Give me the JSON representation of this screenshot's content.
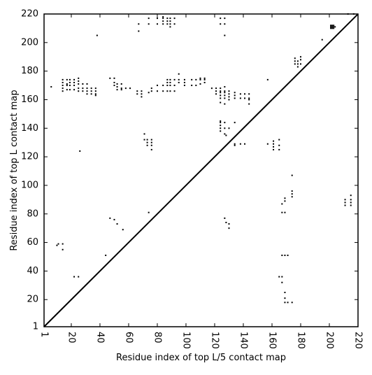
{
  "chart_data": {
    "type": "scatter",
    "title": "",
    "xlabel": "Residue index of top L/5 contact map",
    "ylabel": "Residue index of top L contact map",
    "xlim": [
      1,
      220
    ],
    "ylim": [
      1,
      220
    ],
    "xticks": [
      1,
      20,
      40,
      60,
      80,
      100,
      120,
      140,
      160,
      180,
      200,
      220
    ],
    "yticks": [
      1,
      20,
      40,
      60,
      80,
      100,
      120,
      140,
      160,
      180,
      200,
      220
    ],
    "grid": false,
    "diagonal_line": {
      "from": [
        1,
        1
      ],
      "to": [
        220,
        220
      ]
    },
    "marker_color": "#000000",
    "points": [
      [
        6,
        169
      ],
      [
        10,
        58
      ],
      [
        11,
        59
      ],
      [
        14,
        55
      ],
      [
        14,
        59
      ],
      [
        14,
        166
      ],
      [
        14,
        168
      ],
      [
        14,
        170
      ],
      [
        14,
        172
      ],
      [
        14,
        174
      ],
      [
        17,
        167
      ],
      [
        17,
        170
      ],
      [
        17,
        171
      ],
      [
        17,
        174
      ],
      [
        19,
        167
      ],
      [
        19,
        170
      ],
      [
        19,
        172
      ],
      [
        19,
        174
      ],
      [
        22,
        167
      ],
      [
        22,
        170
      ],
      [
        22,
        172
      ],
      [
        22,
        174
      ],
      [
        25,
        166
      ],
      [
        25,
        168
      ],
      [
        25,
        171
      ],
      [
        25,
        173
      ],
      [
        25,
        175
      ],
      [
        28,
        166
      ],
      [
        28,
        168
      ],
      [
        28,
        171
      ],
      [
        31,
        164
      ],
      [
        31,
        166
      ],
      [
        31,
        168
      ],
      [
        31,
        171
      ],
      [
        34,
        164
      ],
      [
        34,
        166
      ],
      [
        34,
        168
      ],
      [
        37,
        163
      ],
      [
        37,
        164
      ],
      [
        37,
        166
      ],
      [
        37,
        168
      ],
      [
        22,
        36
      ],
      [
        25,
        36
      ],
      [
        26,
        124
      ],
      [
        38,
        205
      ],
      [
        44,
        51
      ],
      [
        47,
        77
      ],
      [
        50,
        76
      ],
      [
        52,
        73
      ],
      [
        56,
        69
      ],
      [
        47,
        175
      ],
      [
        50,
        170
      ],
      [
        50,
        172
      ],
      [
        50,
        175
      ],
      [
        52,
        167
      ],
      [
        52,
        169
      ],
      [
        52,
        171
      ],
      [
        55,
        167
      ],
      [
        55,
        168
      ],
      [
        55,
        171
      ],
      [
        58,
        168
      ],
      [
        61,
        168
      ],
      [
        66,
        164
      ],
      [
        66,
        166
      ],
      [
        67,
        208
      ],
      [
        67,
        213
      ],
      [
        69,
        162
      ],
      [
        69,
        164
      ],
      [
        69,
        166
      ],
      [
        71,
        136
      ],
      [
        71,
        132
      ],
      [
        73,
        128
      ],
      [
        73,
        130
      ],
      [
        73,
        132
      ],
      [
        74,
        81
      ],
      [
        74,
        165
      ],
      [
        74,
        213
      ],
      [
        74,
        217
      ],
      [
        76,
        125
      ],
      [
        76,
        128
      ],
      [
        76,
        130
      ],
      [
        76,
        132
      ],
      [
        76,
        166
      ],
      [
        76,
        168
      ],
      [
        80,
        166
      ],
      [
        80,
        170
      ],
      [
        80,
        213
      ],
      [
        80,
        217
      ],
      [
        84,
        166
      ],
      [
        84,
        170
      ],
      [
        84,
        213
      ],
      [
        84,
        215
      ],
      [
        84,
        217
      ],
      [
        84,
        218
      ],
      [
        87,
        166
      ],
      [
        87,
        170
      ],
      [
        87,
        172
      ],
      [
        87,
        174
      ],
      [
        87,
        213
      ],
      [
        87,
        215
      ],
      [
        87,
        217
      ],
      [
        89,
        166
      ],
      [
        89,
        170
      ],
      [
        89,
        172
      ],
      [
        89,
        174
      ],
      [
        89,
        211
      ],
      [
        89,
        213
      ],
      [
        89,
        215
      ],
      [
        89,
        217
      ],
      [
        92,
        166
      ],
      [
        92,
        170
      ],
      [
        92,
        174
      ],
      [
        92,
        213
      ],
      [
        92,
        217
      ],
      [
        95,
        172
      ],
      [
        95,
        174
      ],
      [
        95,
        178
      ],
      [
        99,
        170
      ],
      [
        99,
        172
      ],
      [
        99,
        174
      ],
      [
        104,
        170
      ],
      [
        104,
        174
      ],
      [
        107,
        170
      ],
      [
        107,
        174
      ],
      [
        110,
        171
      ],
      [
        110,
        174
      ],
      [
        110,
        175
      ],
      [
        113,
        172
      ],
      [
        113,
        174
      ],
      [
        113,
        175
      ],
      [
        118,
        168
      ],
      [
        121,
        164
      ],
      [
        121,
        166
      ],
      [
        121,
        168
      ],
      [
        124,
        138
      ],
      [
        124,
        140
      ],
      [
        124,
        142
      ],
      [
        124,
        144
      ],
      [
        124,
        145
      ],
      [
        124,
        158
      ],
      [
        124,
        161
      ],
      [
        124,
        163
      ],
      [
        124,
        165
      ],
      [
        124,
        166
      ],
      [
        124,
        168
      ],
      [
        124,
        213
      ],
      [
        124,
        217
      ],
      [
        127,
        77
      ],
      [
        127,
        136
      ],
      [
        127,
        140
      ],
      [
        127,
        144
      ],
      [
        127,
        157
      ],
      [
        127,
        161
      ],
      [
        127,
        163
      ],
      [
        127,
        165
      ],
      [
        127,
        166
      ],
      [
        127,
        169
      ],
      [
        127,
        205
      ],
      [
        127,
        213
      ],
      [
        127,
        217
      ],
      [
        128,
        74
      ],
      [
        128,
        135
      ],
      [
        130,
        70
      ],
      [
        130,
        73
      ],
      [
        130,
        140
      ],
      [
        130,
        160
      ],
      [
        130,
        162
      ],
      [
        130,
        164
      ],
      [
        130,
        166
      ],
      [
        134,
        128
      ],
      [
        134,
        129
      ],
      [
        134,
        144
      ],
      [
        134,
        161
      ],
      [
        134,
        163
      ],
      [
        134,
        165
      ],
      [
        138,
        129
      ],
      [
        138,
        161
      ],
      [
        138,
        164
      ],
      [
        141,
        129
      ],
      [
        141,
        161
      ],
      [
        141,
        164
      ],
      [
        144,
        157
      ],
      [
        144,
        160
      ],
      [
        144,
        161
      ],
      [
        144,
        164
      ],
      [
        157,
        129
      ],
      [
        157,
        174
      ],
      [
        161,
        125
      ],
      [
        161,
        127
      ],
      [
        161,
        129
      ],
      [
        161,
        131
      ],
      [
        165,
        36
      ],
      [
        165,
        125
      ],
      [
        165,
        128
      ],
      [
        165,
        132
      ],
      [
        167,
        32
      ],
      [
        167,
        36
      ],
      [
        167,
        51
      ],
      [
        167,
        81
      ],
      [
        167,
        87
      ],
      [
        169,
        18
      ],
      [
        169,
        21
      ],
      [
        169,
        25
      ],
      [
        169,
        51
      ],
      [
        169,
        81
      ],
      [
        169,
        89
      ],
      [
        169,
        91
      ],
      [
        171,
        18
      ],
      [
        171,
        51
      ],
      [
        174,
        18
      ],
      [
        174,
        92
      ],
      [
        174,
        94
      ],
      [
        174,
        96
      ],
      [
        174,
        107
      ],
      [
        176,
        185
      ],
      [
        176,
        187
      ],
      [
        176,
        189
      ],
      [
        178,
        183
      ],
      [
        178,
        185
      ],
      [
        178,
        187
      ],
      [
        180,
        185
      ],
      [
        180,
        188
      ],
      [
        180,
        190
      ],
      [
        195,
        202
      ],
      [
        201,
        210
      ],
      [
        201,
        211
      ],
      [
        201,
        212
      ],
      [
        202,
        210
      ],
      [
        202,
        211
      ],
      [
        202,
        212
      ],
      [
        203,
        210
      ],
      [
        203,
        211
      ],
      [
        203,
        212
      ],
      [
        204,
        211
      ],
      [
        211,
        86
      ],
      [
        211,
        88
      ],
      [
        211,
        90
      ],
      [
        213,
        220
      ],
      [
        215,
        86
      ],
      [
        215,
        88
      ],
      [
        215,
        90
      ],
      [
        215,
        93
      ],
      [
        217,
        220
      ]
    ]
  }
}
